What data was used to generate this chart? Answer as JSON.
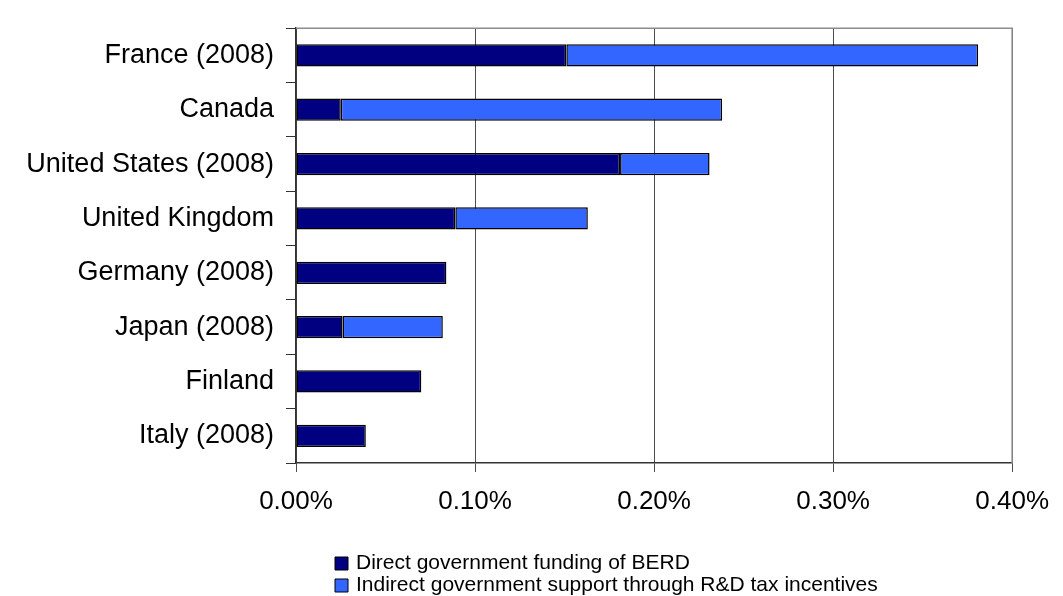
{
  "chart_data": {
    "type": "bar",
    "orientation": "horizontal",
    "stacked": true,
    "categories": [
      "France (2008)",
      "Canada",
      "United States (2008)",
      "United Kingdom",
      "Germany (2008)",
      "Japan (2008)",
      "Finland",
      "Italy (2008)"
    ],
    "series": [
      {
        "name": "Direct government funding of BERD",
        "color": "#000080",
        "values": [
          0.151,
          0.025,
          0.181,
          0.089,
          0.084,
          0.026,
          0.07,
          0.039
        ]
      },
      {
        "name": "Indirect government support through R&D tax incentives",
        "color": "#3366ff",
        "values": [
          0.23,
          0.213,
          0.05,
          0.074,
          null,
          0.056,
          null,
          null
        ]
      }
    ],
    "xlim": [
      0,
      0.4
    ],
    "xticks": [
      {
        "value": 0,
        "label": "0.00%"
      },
      {
        "value": 0.1,
        "label": "0.10%"
      },
      {
        "value": 0.2,
        "label": "0.20%"
      },
      {
        "value": 0.3,
        "label": "0.30%"
      },
      {
        "value": 0.4,
        "label": "0.40%"
      }
    ],
    "grid": "x",
    "legend": "bottom"
  }
}
